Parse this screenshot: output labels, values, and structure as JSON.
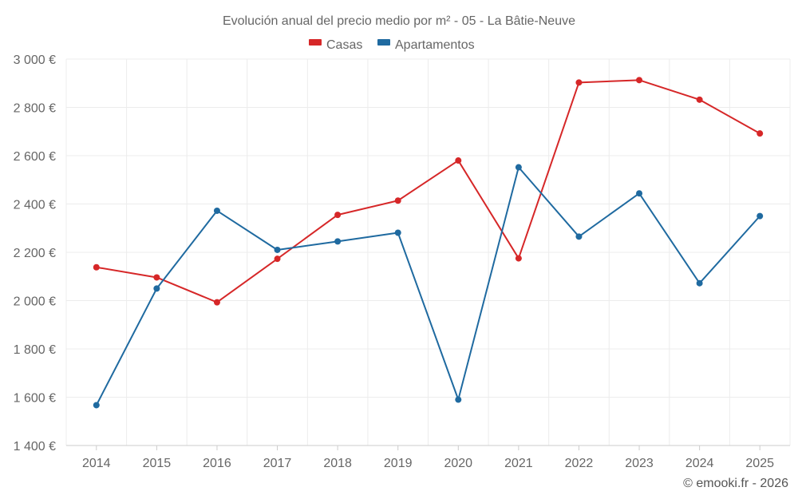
{
  "chart_data": {
    "type": "line",
    "title": "Evolución anual del precio medio por m² - 05 - La Bâtie-Neuve",
    "xlabel": "",
    "ylabel": "",
    "categories": [
      "2014",
      "2015",
      "2016",
      "2017",
      "2018",
      "2019",
      "2020",
      "2021",
      "2022",
      "2023",
      "2024",
      "2025"
    ],
    "ylim": [
      1400,
      3000
    ],
    "yticks": [
      1400,
      1600,
      1800,
      2000,
      2200,
      2400,
      2600,
      2800,
      3000
    ],
    "ytick_labels": [
      "1 400 €",
      "1 600 €",
      "1 800 €",
      "2 000 €",
      "2 200 €",
      "2 400 €",
      "2 600 €",
      "2 800 €",
      "3 000 €"
    ],
    "grid": true,
    "legend_position": "top-center",
    "series": [
      {
        "name": "Casas",
        "color": "#d62728",
        "values": [
          2138,
          2096,
          1993,
          2173,
          2355,
          2414,
          2580,
          2175,
          2903,
          2913,
          2832,
          2692
        ]
      },
      {
        "name": "Apartamentos",
        "color": "#1f6aa0",
        "values": [
          1567,
          2050,
          2372,
          2210,
          2245,
          2281,
          1590,
          2552,
          2265,
          2444,
          2072,
          2350
        ]
      }
    ]
  },
  "credit": "© emooki.fr - 2026"
}
